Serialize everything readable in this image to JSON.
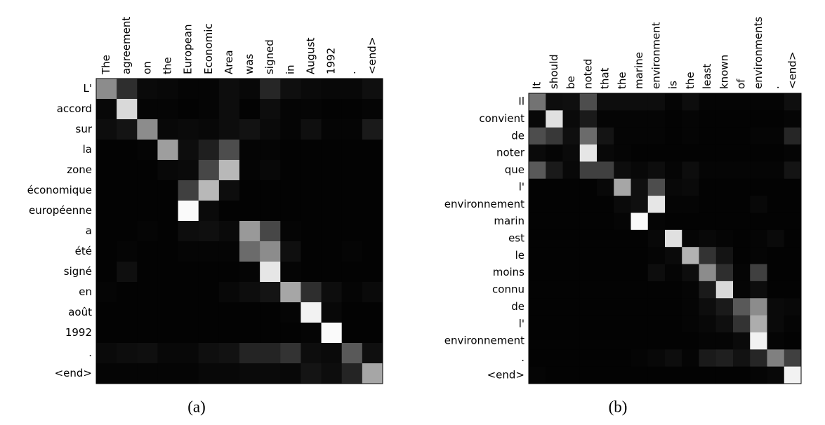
{
  "chart_data": [
    {
      "type": "heatmap",
      "caption": "(a)",
      "cmap": "gray",
      "vlim": [
        0,
        1
      ],
      "x": [
        "The",
        "agreement",
        "on",
        "the",
        "European",
        "Economic",
        "Area",
        "was",
        "signed",
        "in",
        "August",
        "1992",
        ".",
        "<end>"
      ],
      "y": [
        "L'",
        "accord",
        "sur",
        "la",
        "zone",
        "économique",
        "européenne",
        "a",
        "été",
        "signé",
        "en",
        "août",
        "1992",
        ".",
        "<end>"
      ],
      "values": [
        [
          0.55,
          0.18,
          0.04,
          0.03,
          0.02,
          0.02,
          0.05,
          0.03,
          0.15,
          0.06,
          0.04,
          0.03,
          0.03,
          0.06
        ],
        [
          0.03,
          0.85,
          0.02,
          0.02,
          0.01,
          0.02,
          0.05,
          0.01,
          0.05,
          0.02,
          0.02,
          0.01,
          0.01,
          0.02
        ],
        [
          0.05,
          0.08,
          0.55,
          0.03,
          0.04,
          0.03,
          0.05,
          0.07,
          0.04,
          0.02,
          0.06,
          0.02,
          0.02,
          0.1
        ],
        [
          0.01,
          0.01,
          0.02,
          0.62,
          0.05,
          0.12,
          0.3,
          0.02,
          0.02,
          0.01,
          0.01,
          0.01,
          0.01,
          0.01
        ],
        [
          0.01,
          0.01,
          0.01,
          0.03,
          0.04,
          0.28,
          0.72,
          0.02,
          0.03,
          0.01,
          0.01,
          0.01,
          0.01,
          0.01
        ],
        [
          0.01,
          0.01,
          0.01,
          0.01,
          0.25,
          0.72,
          0.05,
          0.01,
          0.01,
          0.01,
          0.01,
          0.01,
          0.01,
          0.01
        ],
        [
          0.01,
          0.01,
          0.01,
          0.01,
          0.98,
          0.04,
          0.01,
          0.01,
          0.01,
          0.01,
          0.01,
          0.01,
          0.01,
          0.01
        ],
        [
          0.01,
          0.01,
          0.02,
          0.01,
          0.05,
          0.06,
          0.04,
          0.6,
          0.28,
          0.02,
          0.01,
          0.01,
          0.01,
          0.01
        ],
        [
          0.01,
          0.02,
          0.01,
          0.01,
          0.02,
          0.02,
          0.02,
          0.42,
          0.55,
          0.06,
          0.01,
          0.01,
          0.02,
          0.01
        ],
        [
          0.01,
          0.06,
          0.01,
          0.01,
          0.01,
          0.01,
          0.01,
          0.02,
          0.9,
          0.02,
          0.01,
          0.01,
          0.01,
          0.01
        ],
        [
          0.02,
          0.01,
          0.01,
          0.01,
          0.01,
          0.01,
          0.03,
          0.05,
          0.08,
          0.65,
          0.18,
          0.05,
          0.02,
          0.04
        ],
        [
          0.01,
          0.01,
          0.01,
          0.01,
          0.01,
          0.01,
          0.01,
          0.01,
          0.01,
          0.02,
          0.95,
          0.03,
          0.01,
          0.01
        ],
        [
          0.01,
          0.01,
          0.01,
          0.01,
          0.01,
          0.01,
          0.01,
          0.01,
          0.01,
          0.01,
          0.02,
          0.98,
          0.01,
          0.01
        ],
        [
          0.04,
          0.05,
          0.06,
          0.03,
          0.03,
          0.06,
          0.07,
          0.14,
          0.14,
          0.2,
          0.05,
          0.04,
          0.35,
          0.06
        ],
        [
          0.02,
          0.02,
          0.02,
          0.02,
          0.02,
          0.03,
          0.03,
          0.04,
          0.04,
          0.03,
          0.08,
          0.05,
          0.14,
          0.65
        ]
      ]
    },
    {
      "type": "heatmap",
      "caption": "(b)",
      "cmap": "gray",
      "vlim": [
        0,
        1
      ],
      "x": [
        "It",
        "should",
        "be",
        "noted",
        "that",
        "the",
        "marine",
        "environment",
        "is",
        "the",
        "least",
        "known",
        "of",
        "environments",
        ".",
        "<end>"
      ],
      "y": [
        "Il",
        "convient",
        "de",
        "noter",
        "que",
        "l'",
        "environnement",
        "marin",
        "est",
        "le",
        "moins",
        "connu",
        "de",
        "l'",
        "environnement",
        ".",
        "<end>"
      ],
      "values": [
        [
          0.45,
          0.05,
          0.06,
          0.3,
          0.05,
          0.05,
          0.05,
          0.05,
          0.02,
          0.05,
          0.02,
          0.02,
          0.02,
          0.02,
          0.02,
          0.06
        ],
        [
          0.03,
          0.88,
          0.04,
          0.1,
          0.02,
          0.02,
          0.02,
          0.02,
          0.01,
          0.02,
          0.01,
          0.01,
          0.01,
          0.01,
          0.01,
          0.02
        ],
        [
          0.3,
          0.22,
          0.06,
          0.42,
          0.08,
          0.02,
          0.02,
          0.02,
          0.01,
          0.02,
          0.01,
          0.01,
          0.01,
          0.02,
          0.02,
          0.15
        ],
        [
          0.04,
          0.02,
          0.04,
          0.9,
          0.03,
          0.02,
          0.01,
          0.01,
          0.01,
          0.01,
          0.01,
          0.01,
          0.01,
          0.01,
          0.01,
          0.02
        ],
        [
          0.35,
          0.1,
          0.03,
          0.25,
          0.25,
          0.05,
          0.03,
          0.05,
          0.02,
          0.05,
          0.02,
          0.02,
          0.02,
          0.02,
          0.02,
          0.08
        ],
        [
          0.01,
          0.01,
          0.01,
          0.01,
          0.03,
          0.65,
          0.06,
          0.3,
          0.03,
          0.04,
          0.01,
          0.01,
          0.01,
          0.01,
          0.01,
          0.01
        ],
        [
          0.01,
          0.01,
          0.01,
          0.01,
          0.01,
          0.04,
          0.06,
          0.9,
          0.02,
          0.02,
          0.01,
          0.01,
          0.01,
          0.03,
          0.01,
          0.01
        ],
        [
          0.01,
          0.01,
          0.01,
          0.01,
          0.01,
          0.02,
          0.98,
          0.02,
          0.01,
          0.01,
          0.01,
          0.01,
          0.01,
          0.01,
          0.01,
          0.01
        ],
        [
          0.01,
          0.01,
          0.01,
          0.01,
          0.01,
          0.01,
          0.01,
          0.03,
          0.88,
          0.02,
          0.03,
          0.02,
          0.01,
          0.02,
          0.04,
          0.01
        ],
        [
          0.01,
          0.01,
          0.01,
          0.01,
          0.01,
          0.01,
          0.01,
          0.02,
          0.04,
          0.7,
          0.2,
          0.08,
          0.01,
          0.02,
          0.01,
          0.01
        ],
        [
          0.01,
          0.01,
          0.01,
          0.01,
          0.01,
          0.01,
          0.01,
          0.05,
          0.02,
          0.05,
          0.55,
          0.18,
          0.02,
          0.25,
          0.01,
          0.01
        ],
        [
          0.01,
          0.01,
          0.01,
          0.01,
          0.01,
          0.01,
          0.01,
          0.01,
          0.01,
          0.02,
          0.1,
          0.85,
          0.02,
          0.05,
          0.01,
          0.01
        ],
        [
          0.01,
          0.01,
          0.01,
          0.01,
          0.01,
          0.01,
          0.01,
          0.01,
          0.01,
          0.02,
          0.05,
          0.1,
          0.35,
          0.55,
          0.04,
          0.03
        ],
        [
          0.01,
          0.01,
          0.01,
          0.01,
          0.01,
          0.01,
          0.01,
          0.01,
          0.01,
          0.02,
          0.03,
          0.06,
          0.2,
          0.68,
          0.04,
          0.02
        ],
        [
          0.01,
          0.01,
          0.01,
          0.01,
          0.01,
          0.01,
          0.01,
          0.01,
          0.01,
          0.01,
          0.02,
          0.02,
          0.04,
          0.95,
          0.02,
          0.01
        ],
        [
          0.01,
          0.01,
          0.01,
          0.01,
          0.01,
          0.01,
          0.02,
          0.03,
          0.05,
          0.02,
          0.1,
          0.12,
          0.07,
          0.15,
          0.5,
          0.25
        ],
        [
          0.02,
          0.01,
          0.01,
          0.01,
          0.01,
          0.01,
          0.01,
          0.01,
          0.01,
          0.01,
          0.01,
          0.01,
          0.01,
          0.02,
          0.03,
          0.95
        ]
      ]
    }
  ]
}
